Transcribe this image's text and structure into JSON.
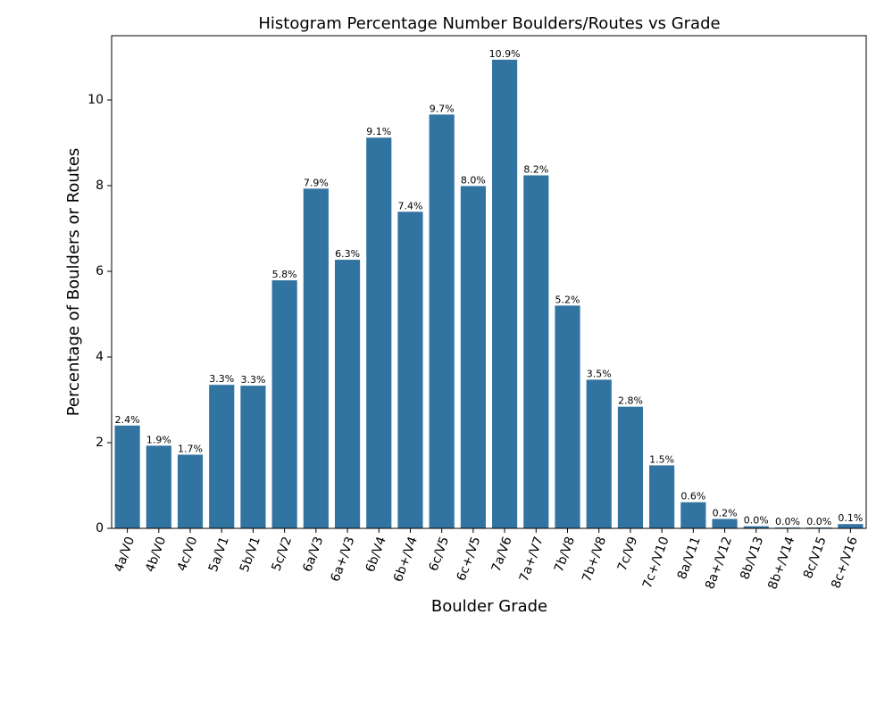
{
  "chart_data": {
    "type": "bar",
    "title": "Histogram Percentage Number Boulders/Routes vs Grade",
    "xlabel": "Boulder Grade",
    "ylabel": "Percentage of Boulders or Routes",
    "categories": [
      "4a/V0",
      "4b/V0",
      "4c/V0",
      "5a/V1",
      "5b/V1",
      "5c/V2",
      "6a/V3",
      "6a+/V3",
      "6b/V4",
      "6b+/V4",
      "6c/V5",
      "6c+/V5",
      "7a/V6",
      "7a+/V7",
      "7b/V8",
      "7b+/V8",
      "7c/V9",
      "7c+/V10",
      "8a/V11",
      "8a+/V12",
      "8b/V13",
      "8b+/V14",
      "8c/V15",
      "8c+/V16"
    ],
    "values": [
      2.4,
      1.93,
      1.72,
      3.35,
      3.33,
      5.79,
      7.93,
      6.27,
      9.12,
      7.39,
      9.66,
      7.99,
      10.94,
      8.24,
      5.2,
      3.47,
      2.84,
      1.47,
      0.61,
      0.22,
      0.05,
      0.02,
      0.02,
      0.1
    ],
    "data_labels": [
      "2.4%",
      "1.9%",
      "1.7%",
      "3.3%",
      "3.3%",
      "5.8%",
      "7.9%",
      "6.3%",
      "9.1%",
      "7.4%",
      "9.7%",
      "8.0%",
      "10.9%",
      "8.2%",
      "5.2%",
      "3.5%",
      "2.8%",
      "1.5%",
      "0.6%",
      "0.2%",
      "0.0%",
      "0.0%",
      "0.0%",
      "0.1%"
    ],
    "yticks": [
      0,
      2,
      4,
      6,
      8,
      10
    ],
    "ylim": [
      0,
      11.5
    ],
    "bar_color": "#3274a1",
    "grid": false
  }
}
